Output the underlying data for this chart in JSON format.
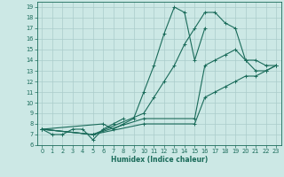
{
  "xlabel": "Humidex (Indice chaleur)",
  "xlim": [
    -0.5,
    23.5
  ],
  "ylim": [
    6,
    19.5
  ],
  "xticks": [
    0,
    1,
    2,
    3,
    4,
    5,
    6,
    7,
    8,
    9,
    10,
    11,
    12,
    13,
    14,
    15,
    16,
    17,
    18,
    19,
    20,
    21,
    22,
    23
  ],
  "yticks": [
    6,
    7,
    8,
    9,
    10,
    11,
    12,
    13,
    14,
    15,
    16,
    17,
    18,
    19
  ],
  "bg_color": "#cce8e5",
  "grid_color": "#aaccca",
  "line_color": "#1a6b5a",
  "lines": [
    {
      "x": [
        0,
        1,
        2,
        3,
        4,
        5,
        6,
        7,
        8
      ],
      "y": [
        7.5,
        7.0,
        7.0,
        7.5,
        7.5,
        6.5,
        7.5,
        8.0,
        8.5
      ]
    },
    {
      "x": [
        0,
        6,
        7,
        8,
        9,
        10,
        11,
        12,
        13,
        14,
        15,
        16
      ],
      "y": [
        7.5,
        8.0,
        7.5,
        8.0,
        8.5,
        11.0,
        13.5,
        16.5,
        19.0,
        18.5,
        14.0,
        17.0
      ]
    },
    {
      "x": [
        0,
        5,
        10,
        11,
        12,
        13,
        14,
        15,
        16,
        17,
        18,
        19,
        20,
        21,
        22,
        23
      ],
      "y": [
        7.5,
        7.0,
        9.0,
        10.5,
        12.0,
        13.5,
        15.5,
        17.0,
        18.5,
        18.5,
        17.5,
        17.0,
        14.0,
        14.0,
        13.5,
        13.5
      ]
    },
    {
      "x": [
        0,
        5,
        10,
        15,
        16,
        17,
        18,
        19,
        20,
        21,
        22,
        23
      ],
      "y": [
        7.5,
        7.0,
        8.5,
        8.5,
        13.5,
        14.0,
        14.5,
        15.0,
        14.0,
        13.0,
        13.0,
        13.5
      ]
    },
    {
      "x": [
        0,
        5,
        10,
        15,
        16,
        17,
        18,
        19,
        20,
        21,
        22,
        23
      ],
      "y": [
        7.5,
        7.0,
        8.0,
        8.0,
        10.5,
        11.0,
        11.5,
        12.0,
        12.5,
        12.5,
        13.0,
        13.5
      ]
    }
  ]
}
